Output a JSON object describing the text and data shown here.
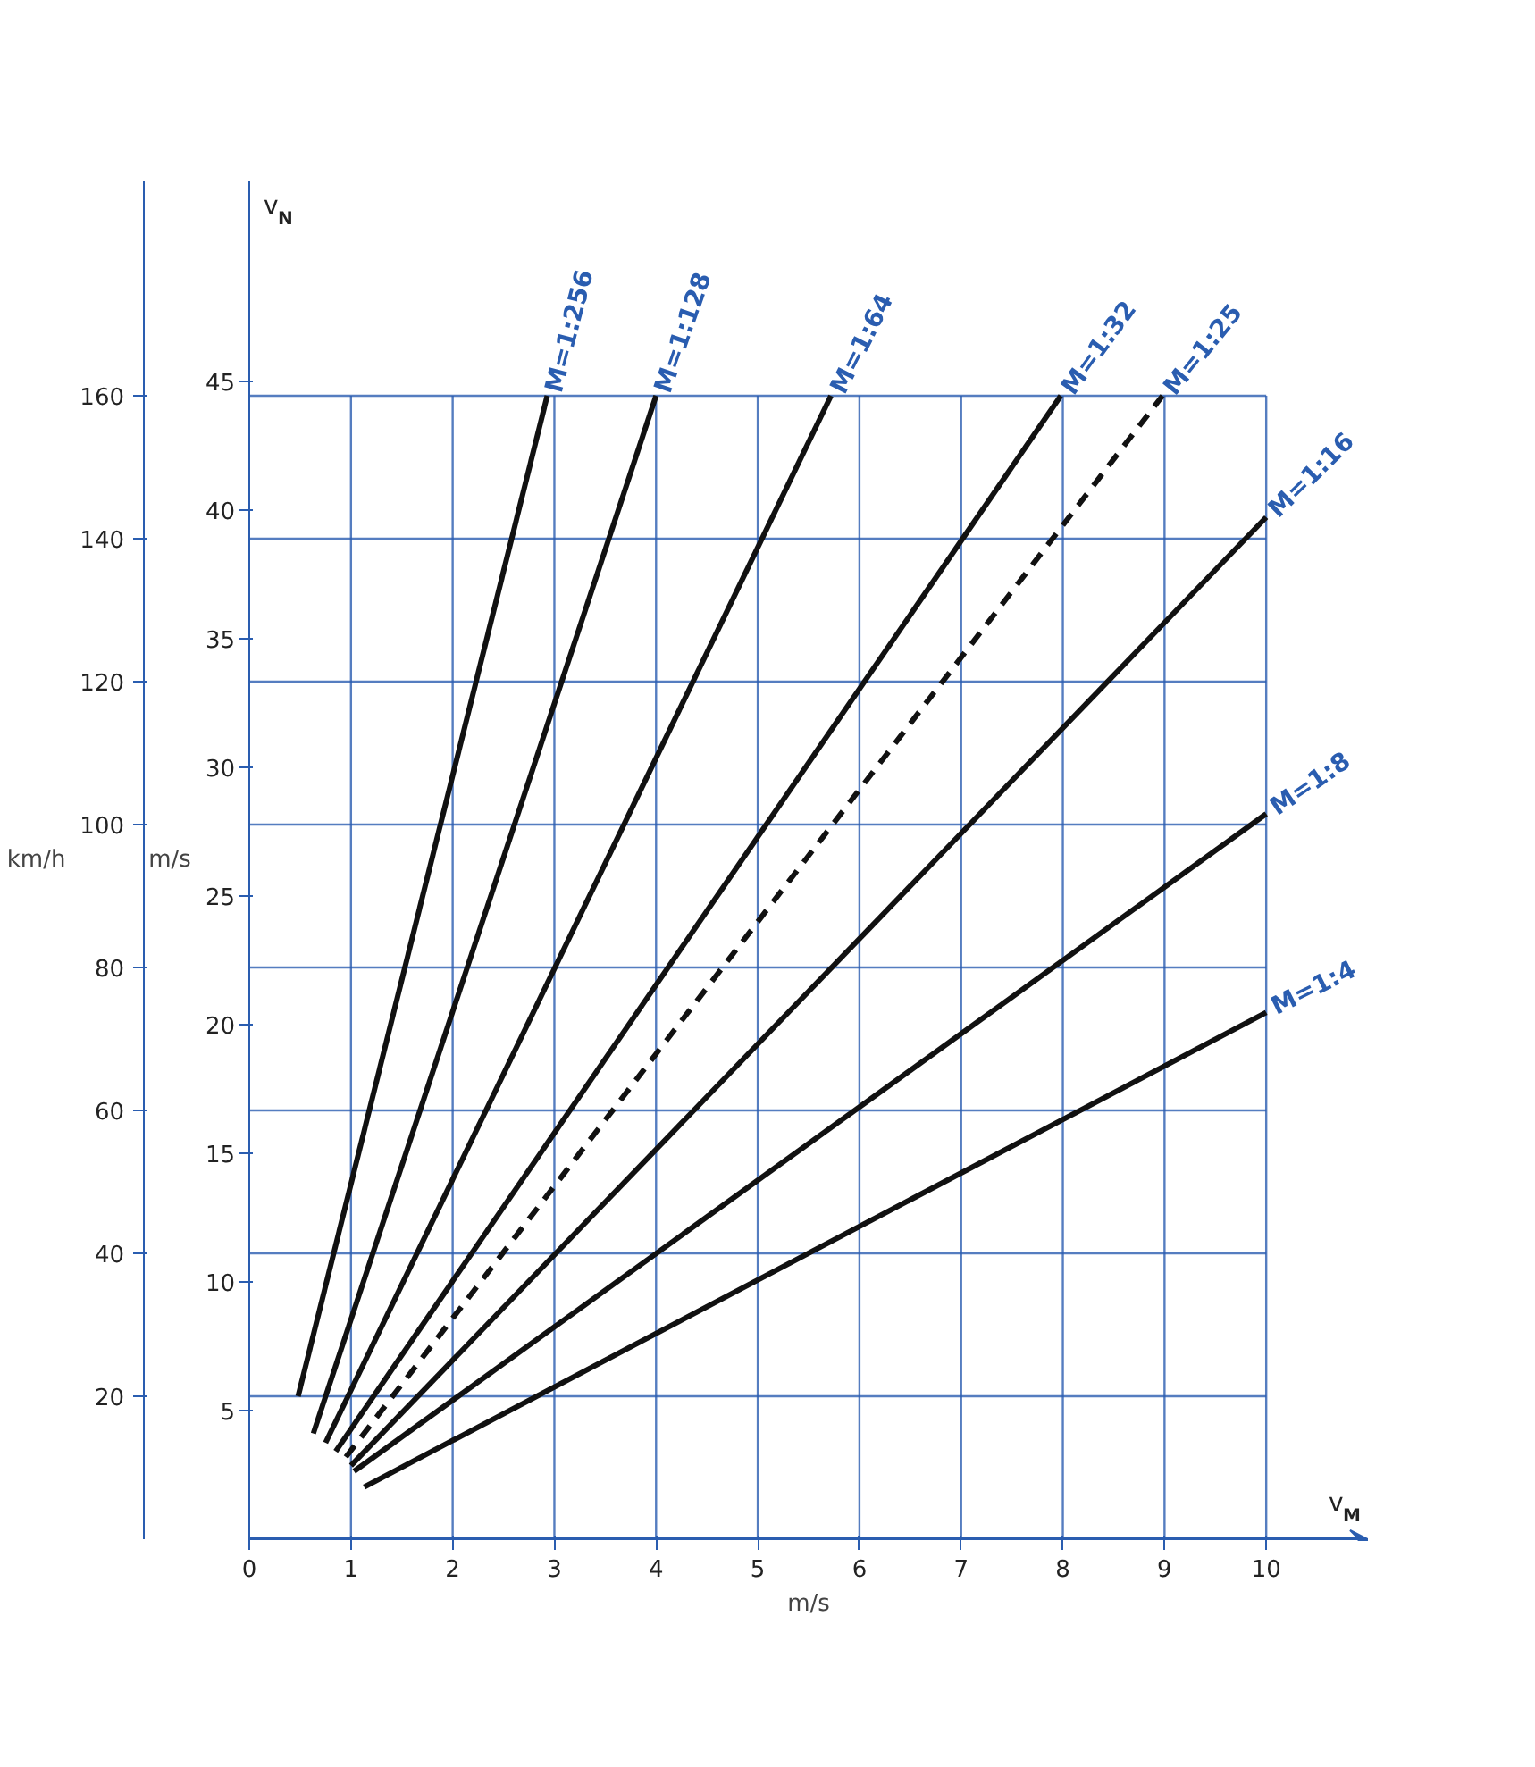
{
  "chart_data": {
    "type": "line",
    "ylabel": "km/h",
    "y2label": "m/s",
    "xlabel": "m/s",
    "annotations": [
      "v$_{N}$",
      "v$_{M}$"
    ],
    "xlim": [
      0,
      11
    ],
    "xticks": [
      0,
      1,
      2,
      3,
      4,
      5,
      6,
      7,
      8,
      9,
      10
    ],
    "ylim": [
      0,
      190
    ],
    "yticks": [
      20,
      40,
      60,
      80,
      100,
      120,
      140,
      160
    ],
    "y2lim": [
      0,
      52.78
    ],
    "y2ticks": [
      5,
      10,
      15,
      20,
      25,
      30,
      35,
      40,
      45
    ],
    "grid": true,
    "line_style": "solid",
    "marker": "none",
    "series": [
      {
        "name": "M=1:256",
        "color": "#111111",
        "x": [
          0.48,
          2.93
        ],
        "values": [
          20,
          160
        ]
      },
      {
        "name": "M=1:128",
        "color": "#111111",
        "x": [
          0.63,
          4.0
        ],
        "values": [
          14.8,
          160
        ]
      },
      {
        "name": "M=1:64",
        "color": "#111111",
        "x": [
          0.75,
          5.72
        ],
        "values": [
          13.5,
          160
        ]
      },
      {
        "name": "M=1:32",
        "color": "#111111",
        "x": [
          0.85,
          7.98
        ],
        "values": [
          12.3,
          160
        ]
      },
      {
        "name": "M=1:25",
        "color": "#111111",
        "x": [
          0.95,
          8.98
        ],
        "values": [
          11.5,
          160
        ],
        "line_style": "dashed"
      },
      {
        "name": "M=1:16",
        "color": "#111111",
        "x": [
          1.0,
          10.0
        ],
        "values": [
          10.3,
          143
        ]
      },
      {
        "name": "M=1:8",
        "color": "#111111",
        "x": [
          1.03,
          10.0
        ],
        "values": [
          9.5,
          101.5
        ]
      },
      {
        "name": "M=1:4",
        "color": "#111111",
        "x": [
          1.13,
          10.0
        ],
        "values": [
          7.3,
          73.7
        ]
      }
    ]
  }
}
